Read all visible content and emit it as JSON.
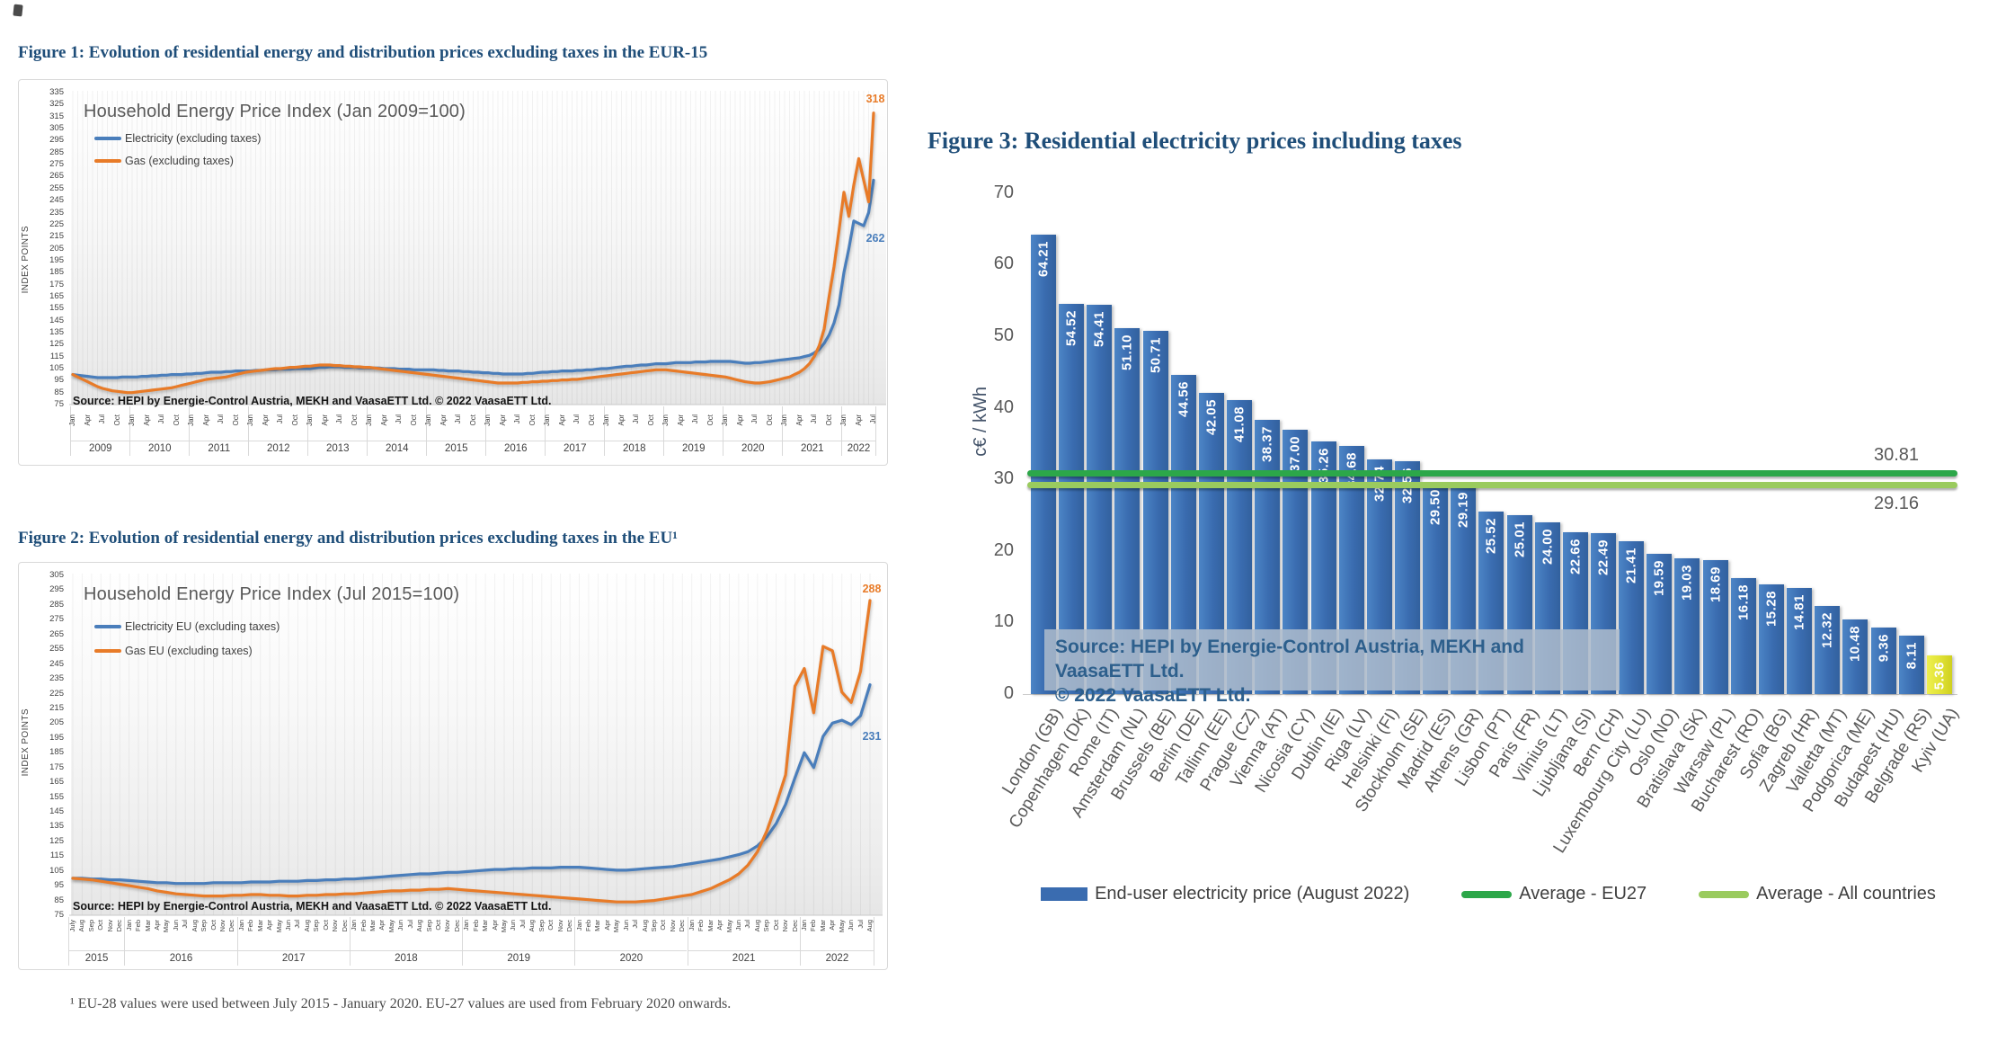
{
  "document": {
    "figure1_heading": "Figure 1: Evolution of residential energy and distribution prices excluding taxes in the EUR-15",
    "figure2_heading": "Figure 2: Evolution of residential energy and distribution prices excluding taxes in the EU¹",
    "figure3_heading": "Figure 3: Residential electricity prices including taxes",
    "footnote": "¹ EU-28 values were used between July 2015 - January 2020. EU-27 values are used from February 2020 onwards.",
    "heading_color": "#1f4e79"
  },
  "chart_data": [
    {
      "id": "figure1",
      "type": "line",
      "title": "Household Energy Price Index (Jan 2009=100)",
      "ylabel": "INDEX POINTS",
      "ylim": [
        75,
        335
      ],
      "ytick_step": 10,
      "grid": "vertical-monthly",
      "legend_position": "top-left",
      "source": "Source: HEPI by Energie-Control Austria, MEKH and VaasaETT Ltd.  © 2022 VaasaETT Ltd.",
      "x_groups": [
        {
          "year": "2009",
          "months": [
            "Jan",
            "Apr",
            "Jul",
            "Oct"
          ]
        },
        {
          "year": "2010",
          "months": [
            "Jan",
            "Apr",
            "Jul",
            "Oct"
          ]
        },
        {
          "year": "2011",
          "months": [
            "Jan",
            "Apr",
            "Jul",
            "Oct"
          ]
        },
        {
          "year": "2012",
          "months": [
            "Jan",
            "Apr",
            "Jul",
            "Oct"
          ]
        },
        {
          "year": "2013",
          "months": [
            "Jan",
            "Apr",
            "Jul",
            "Oct"
          ]
        },
        {
          "year": "2014",
          "months": [
            "Jan",
            "Apr",
            "Jul",
            "Oct"
          ]
        },
        {
          "year": "2015",
          "months": [
            "Jan",
            "Apr",
            "Jul",
            "Oct"
          ]
        },
        {
          "year": "2016",
          "months": [
            "Jan",
            "Apr",
            "Jul",
            "Oct"
          ]
        },
        {
          "year": "2017",
          "months": [
            "Jan",
            "Apr",
            "Jul",
            "Oct"
          ]
        },
        {
          "year": "2018",
          "months": [
            "Jan",
            "Apr",
            "Jul",
            "Oct"
          ]
        },
        {
          "year": "2019",
          "months": [
            "Jan",
            "Apr",
            "Jul",
            "Oct"
          ]
        },
        {
          "year": "2020",
          "months": [
            "Jan",
            "Apr",
            "Jul",
            "Oct"
          ]
        },
        {
          "year": "2021",
          "months": [
            "Jan",
            "Apr",
            "Jul",
            "Oct"
          ]
        },
        {
          "year": "2022",
          "months": [
            "Jan",
            "Apr",
            "Jul"
          ]
        }
      ],
      "series": [
        {
          "name": "Electricity (excluding taxes)",
          "color": "#4a7ebb",
          "end_label": "262",
          "values": [
            100,
            99.5,
            99,
            98.5,
            98,
            97.5,
            97.5,
            97.5,
            97.5,
            97.5,
            98,
            98,
            98,
            98,
            98.5,
            98.5,
            99,
            99,
            99.5,
            99.5,
            100,
            100,
            100,
            100.5,
            100.5,
            101,
            101,
            101.5,
            102,
            102,
            102,
            102.5,
            102.5,
            103,
            103,
            103,
            103,
            103.5,
            103.5,
            104,
            104,
            104,
            104.5,
            104.5,
            104.5,
            105,
            105,
            105,
            105,
            105.5,
            106,
            106,
            106.5,
            106.5,
            106.5,
            106,
            106,
            106,
            105.5,
            105.5,
            105.5,
            105.5,
            105.5,
            105,
            105,
            105,
            104.5,
            104.5,
            104.5,
            104,
            104,
            104,
            104,
            104,
            103.5,
            103.5,
            103,
            103,
            103,
            102.5,
            102.5,
            102,
            102,
            101.5,
            101.5,
            101,
            101,
            100.5,
            100.5,
            100.5,
            100.5,
            100.5,
            101,
            101,
            101.5,
            102,
            102,
            102.5,
            102.5,
            103,
            103,
            103,
            103.5,
            103.5,
            104,
            104,
            104.5,
            105,
            105,
            105.5,
            106,
            106.5,
            107,
            107,
            107.5,
            108,
            108,
            108.5,
            109,
            109,
            109,
            109.5,
            110,
            110,
            110,
            110,
            110.5,
            110.5,
            110.5,
            111,
            111,
            111,
            111,
            111,
            110.5,
            110,
            109.5,
            109.5,
            110,
            110,
            110.5,
            111,
            111.5,
            112,
            112.5,
            113,
            113.5,
            114,
            115,
            116,
            118,
            121,
            126,
            133,
            143,
            158,
            185,
            205,
            228,
            226,
            224,
            235,
            262
          ]
        },
        {
          "name": "Gas (excluding taxes)",
          "color": "#e87b28",
          "end_label": "318",
          "values": [
            100,
            98,
            96,
            94,
            92,
            90,
            88.5,
            87.5,
            86.5,
            86,
            85.5,
            85,
            85,
            85.5,
            86,
            86.5,
            87,
            87.5,
            88,
            88.5,
            89,
            90,
            91,
            92,
            93,
            94,
            95,
            96,
            96.5,
            97,
            97.5,
            98,
            99,
            100,
            101,
            102,
            102.5,
            103,
            103.5,
            104,
            104.5,
            105,
            105,
            105.5,
            106,
            106,
            106.5,
            107,
            107,
            107.5,
            108,
            108,
            108,
            107.5,
            107.5,
            107,
            107,
            106.5,
            106.5,
            106,
            106,
            105.5,
            105,
            104.5,
            104,
            103.5,
            103,
            102.5,
            102,
            101.5,
            101,
            100.5,
            100,
            99.5,
            99,
            98.5,
            98,
            97.5,
            97,
            96.5,
            96,
            95.5,
            95,
            94.5,
            94,
            93.5,
            93,
            93,
            93,
            93,
            93,
            93.5,
            93.5,
            94,
            94,
            94.5,
            94.5,
            95,
            95,
            95.5,
            95.5,
            96,
            96,
            96.5,
            97,
            97.5,
            98,
            98.5,
            99,
            99.5,
            100,
            100.5,
            101,
            101.5,
            102,
            102.5,
            103,
            103.5,
            104,
            104,
            104,
            103.5,
            103,
            102.5,
            102,
            101.5,
            101,
            100.5,
            100,
            99.5,
            99,
            98.5,
            98,
            97,
            96,
            95,
            94,
            93.5,
            93,
            93,
            93.5,
            94,
            95,
            96,
            97,
            98,
            100,
            102,
            105,
            109,
            115,
            124,
            138,
            165,
            190,
            220,
            252,
            232,
            258,
            280,
            262,
            244,
            318
          ]
        }
      ]
    },
    {
      "id": "figure2",
      "type": "line",
      "title": "Household Energy Price Index (Jul 2015=100)",
      "ylabel": "INDEX POINTS",
      "ylim": [
        75,
        305
      ],
      "ytick_step": 10,
      "grid": "vertical-monthly",
      "legend_position": "top-left",
      "source": "Source: HEPI by Energie-Control Austria, MEKH and VaasaETT Ltd.  © 2022 VaasaETT Ltd.",
      "x_groups": [
        {
          "year": "2015",
          "months": [
            "July",
            "Aug",
            "Sep",
            "Oct",
            "Nov",
            "Dec"
          ]
        },
        {
          "year": "2016",
          "months": [
            "Jan",
            "Feb",
            "Mar",
            "Apr",
            "May",
            "Jun",
            "Jul",
            "Aug",
            "Sep",
            "Oct",
            "Nov",
            "Dec"
          ]
        },
        {
          "year": "2017",
          "months": [
            "Jan",
            "Feb",
            "Mar",
            "Apr",
            "May",
            "Jun",
            "Jul",
            "Aug",
            "Sep",
            "Oct",
            "Nov",
            "Dec"
          ]
        },
        {
          "year": "2018",
          "months": [
            "Jan",
            "Feb",
            "Mar",
            "Apr",
            "May",
            "Jun",
            "Jul",
            "Aug",
            "Sep",
            "Oct",
            "Nov",
            "Dec"
          ]
        },
        {
          "year": "2019",
          "months": [
            "Jan",
            "Feb",
            "Mar",
            "Apr",
            "May",
            "Jun",
            "Jul",
            "Aug",
            "Sep",
            "Oct",
            "Nov",
            "Dec"
          ]
        },
        {
          "year": "2020",
          "months": [
            "Jan",
            "Feb",
            "Mar",
            "Apr",
            "May",
            "Jun",
            "Jul",
            "Aug",
            "Sep",
            "Oct",
            "Nov",
            "Dec"
          ]
        },
        {
          "year": "2021",
          "months": [
            "Jan",
            "Feb",
            "Mar",
            "Apr",
            "May",
            "Jun",
            "Jul",
            "Aug",
            "Sep",
            "Oct",
            "Nov",
            "Dec"
          ]
        },
        {
          "year": "2022",
          "months": [
            "Jan",
            "Feb",
            "Mar",
            "Apr",
            "May",
            "Jun",
            "Jul",
            "Aug"
          ]
        }
      ],
      "series": [
        {
          "name": "Electricity EU (excluding taxes)",
          "color": "#4a7ebb",
          "end_label": "231",
          "values": [
            100,
            100,
            99.5,
            99.5,
            99,
            99,
            98.5,
            98,
            97.5,
            97,
            97,
            96.5,
            96.5,
            96.5,
            96.5,
            97,
            97,
            97,
            97,
            97.5,
            97.5,
            97.5,
            98,
            98,
            98,
            98.5,
            98.5,
            99,
            99,
            99.5,
            99.5,
            100,
            100.5,
            101,
            101.5,
            102,
            102.5,
            103,
            103,
            103.5,
            104,
            104,
            104.5,
            105,
            105.5,
            106,
            106,
            106.5,
            106.5,
            107,
            107,
            107,
            107.5,
            107.5,
            107.5,
            107,
            106.5,
            106,
            105.5,
            105.5,
            106,
            106.5,
            107,
            107.5,
            108,
            109,
            110,
            111,
            112,
            113,
            114.5,
            116,
            118,
            122,
            128,
            137,
            150,
            168,
            185,
            175,
            196,
            205,
            207,
            204,
            210,
            231
          ]
        },
        {
          "name": "Gas EU (excluding taxes)",
          "color": "#e87b28",
          "end_label": "288",
          "values": [
            100,
            99.5,
            99,
            98,
            97,
            96,
            95,
            94,
            93,
            91.5,
            90.5,
            89.5,
            89,
            88.5,
            88,
            88,
            88,
            88.5,
            88.5,
            89,
            89,
            88.5,
            88.5,
            88,
            88,
            88.5,
            88.5,
            89,
            89,
            89.5,
            89.5,
            90,
            90.5,
            91,
            91.5,
            91.5,
            92,
            92,
            92.5,
            92.5,
            93,
            92.5,
            92,
            91.5,
            91,
            90.5,
            90,
            89.5,
            89,
            88.5,
            88,
            87.5,
            87,
            86.5,
            86,
            85.5,
            85,
            84.5,
            84,
            84,
            84,
            84.5,
            85,
            86,
            87,
            88,
            89,
            91,
            93,
            96,
            99,
            103,
            109,
            118,
            132,
            150,
            170,
            230,
            242,
            212,
            257,
            254,
            226,
            219,
            240,
            288
          ]
        }
      ]
    },
    {
      "id": "figure3",
      "type": "bar",
      "ylabel": "c€ / kWh",
      "ylim": [
        0,
        70
      ],
      "ytick_step": 10,
      "source_line1": "Source: HEPI by Energie-Control Austria, MEKH and VaasaETT Ltd.",
      "source_line2": "© 2022 VaasaETT Ltd.",
      "legend": [
        {
          "label": "End-user electricity price (August 2022)",
          "type": "bar",
          "color": "#3a6cb0"
        },
        {
          "label": "Average - EU27",
          "type": "line",
          "color": "#2ca749",
          "value": 30.81,
          "value_label": "30.81"
        },
        {
          "label": "Average - All countries",
          "type": "line",
          "color": "#9acb5e",
          "value": 29.16,
          "value_label": "29.16"
        }
      ],
      "bars": [
        {
          "label": "London (GB)",
          "value": 64.21
        },
        {
          "label": "Copenhagen (DK)",
          "value": 54.52
        },
        {
          "label": "Rome (IT)",
          "value": 54.41
        },
        {
          "label": "Amsterdam (NL)",
          "value": 51.1
        },
        {
          "label": "Brussels (BE)",
          "value": 50.71
        },
        {
          "label": "Berlin (DE)",
          "value": 44.56
        },
        {
          "label": "Tallinn (EE)",
          "value": 42.05
        },
        {
          "label": "Prague (CZ)",
          "value": 41.08
        },
        {
          "label": "Vienna (AT)",
          "value": 38.37
        },
        {
          "label": "Nicosia (CY)",
          "value": 37.0
        },
        {
          "label": "Dublin (IE)",
          "value": 35.26
        },
        {
          "label": "Riga (LV)",
          "value": 34.68
        },
        {
          "label": "Helsinki (FI)",
          "value": 32.74
        },
        {
          "label": "Stockholm (SE)",
          "value": 32.56
        },
        {
          "label": "Madrid (ES)",
          "value": 29.5
        },
        {
          "label": "Athens (GR)",
          "value": 29.19
        },
        {
          "label": "Lisbon (PT)",
          "value": 25.52
        },
        {
          "label": "Paris (FR)",
          "value": 25.01
        },
        {
          "label": "Vilnius (LT)",
          "value": 24.0
        },
        {
          "label": "Ljubljana (SI)",
          "value": 22.66
        },
        {
          "label": "Bern (CH)",
          "value": 22.49
        },
        {
          "label": "Luxembourg City (LU)",
          "value": 21.41
        },
        {
          "label": "Oslo (NO)",
          "value": 19.59
        },
        {
          "label": "Bratislava (SK)",
          "value": 19.03
        },
        {
          "label": "Warsaw (PL)",
          "value": 18.69
        },
        {
          "label": "Bucharest (RO)",
          "value": 16.18
        },
        {
          "label": "Sofia (BG)",
          "value": 15.28
        },
        {
          "label": "Zagreb (HR)",
          "value": 14.81
        },
        {
          "label": "Valletta (MT)",
          "value": 12.32
        },
        {
          "label": "Podgorica (ME)",
          "value": 10.48
        },
        {
          "label": "Budapest (HU)",
          "value": 9.36
        },
        {
          "label": "Belgrade (RS)",
          "value": 8.11
        },
        {
          "label": "Kyiv (UA)",
          "value": 5.36,
          "color": "#e6e43c"
        }
      ]
    }
  ]
}
